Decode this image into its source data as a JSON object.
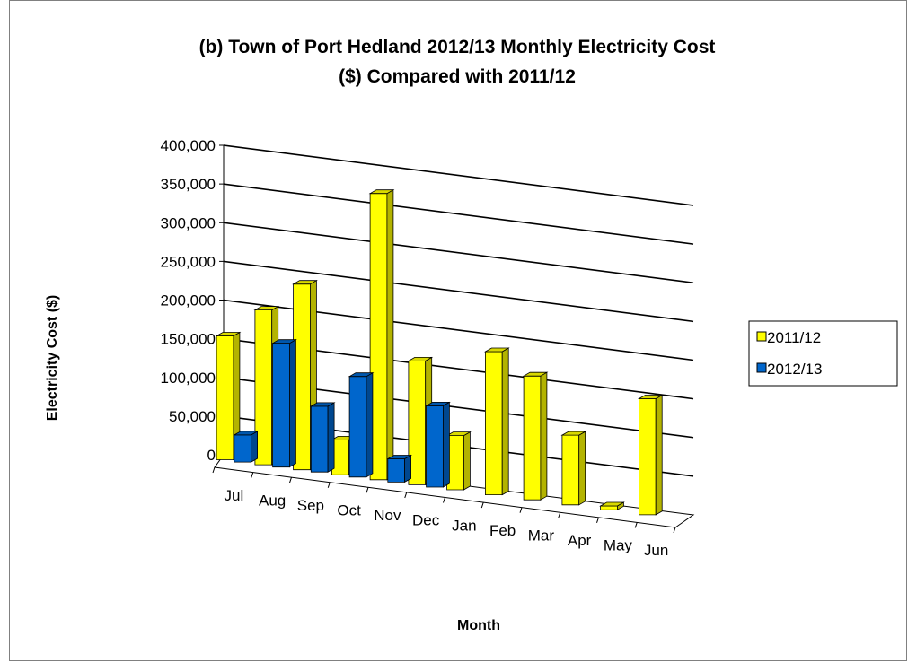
{
  "chart_data": {
    "type": "bar",
    "variant": "3d-clustered-column",
    "title": "(b)  Town of Port Hedland 2012/13 Monthly Electricity Cost",
    "title_line2": "($) Compared with 2011/12",
    "xlabel": "Month",
    "ylabel": "Electricity Cost ($)",
    "ylim": [
      0,
      400000
    ],
    "yticks": [
      "0",
      "50,000",
      "100,000",
      "150,000",
      "200,000",
      "250,000",
      "300,000",
      "350,000",
      "400,000"
    ],
    "categories": [
      "Jul",
      "Aug",
      "Sep",
      "Oct",
      "Nov",
      "Dec",
      "Jan",
      "Feb",
      "Mar",
      "Apr",
      "May",
      "Jun"
    ],
    "series": [
      {
        "name": "2011/12",
        "color": "#ffff00",
        "values": [
          160000,
          200000,
          240000,
          45000,
          370000,
          160000,
          70000,
          185000,
          160000,
          90000,
          5000,
          150000
        ]
      },
      {
        "name": "2012/13",
        "color": "#0066cc",
        "values": [
          35000,
          160000,
          85000,
          130000,
          30000,
          105000,
          null,
          null,
          null,
          null,
          null,
          null
        ]
      }
    ],
    "grid": true,
    "legend_position": "right"
  }
}
